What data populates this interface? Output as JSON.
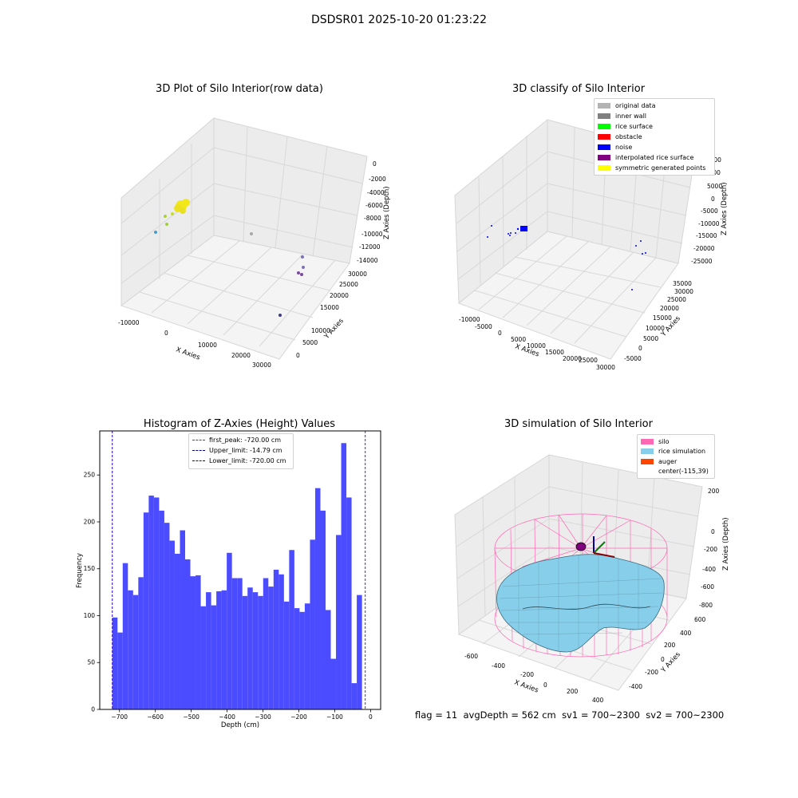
{
  "suptitle": "DSDSR01 2025-10-20 01:23:22",
  "footer": {
    "flag": "flag = 11",
    "avg": "avgDepth = 562 cm",
    "sv1": "sv1 = 700~2300",
    "sv2": "sv2 = 700~2300"
  },
  "chart_data": [
    {
      "type": "scatter",
      "projection": "3d",
      "title": "3D Plot of Silo Interior(row data)",
      "xlabel": "X Axies",
      "ylabel": "Y Axies",
      "zlabel": "Z Axies (Depth)",
      "xticks": [
        "-10000",
        "0",
        "10000",
        "20000",
        "30000"
      ],
      "yticks": [
        "0",
        "5000",
        "10000",
        "15000",
        "20000",
        "25000",
        "30000"
      ],
      "zticks": [
        "0",
        "-2000",
        "-4000",
        "-6000",
        "-8000",
        "-10000",
        "-12000",
        "-14000"
      ],
      "grid": true,
      "clusters": [
        {
          "color": "#f2e818",
          "points": [
            [
              -4500,
              26000,
              -4200
            ]
          ],
          "size": "dense"
        },
        {
          "color": "#c8dc2c",
          "points": [
            [
              -6500,
              24000,
              -5600
            ],
            [
              -8000,
              23000,
              -6200
            ]
          ]
        },
        {
          "color": "#a0d040",
          "points": [
            [
              -9000,
              22000,
              -7000
            ]
          ]
        },
        {
          "color": "#4a9cc8",
          "points": [
            [
              -11500,
              20000,
              -8200
            ]
          ]
        },
        {
          "color": "#a8a8a8",
          "points": [
            [
              9000,
              25000,
              -9800
            ]
          ]
        },
        {
          "color": "#8070b8",
          "points": [
            [
              24000,
              16000,
              -12800
            ],
            [
              25000,
              15000,
              -13400
            ]
          ]
        },
        {
          "color": "#7b4aa0",
          "points": [
            [
              24500,
              13000,
              -14000
            ],
            [
              25500,
              12500,
              -14200
            ]
          ]
        },
        {
          "color": "#3c3c88",
          "points": [
            [
              28000,
              4000,
              -15500
            ]
          ]
        }
      ]
    },
    {
      "type": "scatter",
      "projection": "3d",
      "title": "3D classify of Silo Interior",
      "xlabel": "X Axies",
      "ylabel": "Y Axies",
      "zlabel": "Z Axies (Depth)",
      "xticks": [
        "-10000",
        "-5000",
        "0",
        "5000",
        "10000",
        "15000",
        "20000",
        "25000",
        "30000"
      ],
      "yticks": [
        "-5000",
        "0",
        "5000",
        "10000",
        "15000",
        "20000",
        "25000",
        "30000",
        "35000"
      ],
      "zticks": [
        "15000",
        "10000",
        "5000",
        "0",
        "-5000",
        "-10000",
        "-15000",
        "-20000",
        "-25000"
      ],
      "grid": true,
      "legend_position": "top-right",
      "legend": [
        {
          "label": "original data",
          "color": "#b3b3b3"
        },
        {
          "label": "inner wall",
          "color": "#808080"
        },
        {
          "label": "rice surface",
          "color": "#00ff00"
        },
        {
          "label": "obstacle",
          "color": "#ff0000"
        },
        {
          "label": "noise",
          "color": "#0000ff"
        },
        {
          "label": "interpolated rice surface",
          "color": "#800080"
        },
        {
          "label": "symmetric generated points",
          "color": "#ffff00"
        }
      ],
      "series_points": {
        "noise": "scattered blue points",
        "dense_cluster_color": "#0000ff"
      }
    },
    {
      "type": "bar",
      "title": "Histogram of Z-Axies (Height) Values",
      "xlabel": "Depth (cm)",
      "ylabel": "Frequency",
      "bin_start": -720,
      "bin_width": 14.5,
      "values": [
        98,
        82,
        156,
        127,
        122,
        141,
        210,
        228,
        226,
        212,
        199,
        180,
        166,
        191,
        160,
        142,
        143,
        110,
        125,
        111,
        126,
        127,
        167,
        140,
        140,
        121,
        130,
        125,
        121,
        140,
        131,
        149,
        144,
        115,
        170,
        108,
        104,
        113,
        181,
        236,
        212,
        106,
        54,
        186,
        284,
        226,
        28,
        122
      ],
      "bar_color": "#4b4bff",
      "xlim": [
        -755,
        28
      ],
      "ylim": [
        0,
        297
      ],
      "xticks": [
        -700,
        -600,
        -500,
        -400,
        -300,
        -200,
        -100,
        0
      ],
      "yticks": [
        0,
        50,
        100,
        150,
        200,
        250
      ],
      "xtick_labels": [
        "−700",
        "−600",
        "−500",
        "−400",
        "−300",
        "−200",
        "−100",
        "0"
      ],
      "ytick_labels": [
        "0",
        "50",
        "100",
        "150",
        "200",
        "250"
      ],
      "vlines": [
        {
          "x": -720.0,
          "color": "#ff0000",
          "label": "first_peak: -720.00 cm"
        },
        {
          "x": -14.79,
          "color": "#00008b",
          "label": "Upper_limit: -14.79 cm"
        },
        {
          "x": -720.0,
          "color": "#0000ff",
          "label": "Lower_limit: -720.00 cm"
        }
      ],
      "legend_position": "top-center"
    },
    {
      "type": "surface",
      "projection": "3d",
      "title": "3D simulation of Silo Interior",
      "xlabel": "X Axies",
      "ylabel": "Y Axies",
      "zlabel": "Z Axies (Depth)",
      "xticks": [
        "-600",
        "-400",
        "-200",
        "0",
        "200",
        "400"
      ],
      "yticks": [
        "-400",
        "-200",
        "0",
        "200",
        "400",
        "600"
      ],
      "zticks": [
        "200",
        "0",
        "-200",
        "-400",
        "-600",
        "-800"
      ],
      "grid": true,
      "legend_position": "top-right",
      "legend": [
        {
          "label": "silo",
          "color": "#ff69b4"
        },
        {
          "label": "rice simulation",
          "color": "#87ceeb"
        },
        {
          "label": "auger",
          "color": "#ff4500"
        },
        {
          "label": "center(-115,39)",
          "color": ""
        }
      ]
    }
  ]
}
